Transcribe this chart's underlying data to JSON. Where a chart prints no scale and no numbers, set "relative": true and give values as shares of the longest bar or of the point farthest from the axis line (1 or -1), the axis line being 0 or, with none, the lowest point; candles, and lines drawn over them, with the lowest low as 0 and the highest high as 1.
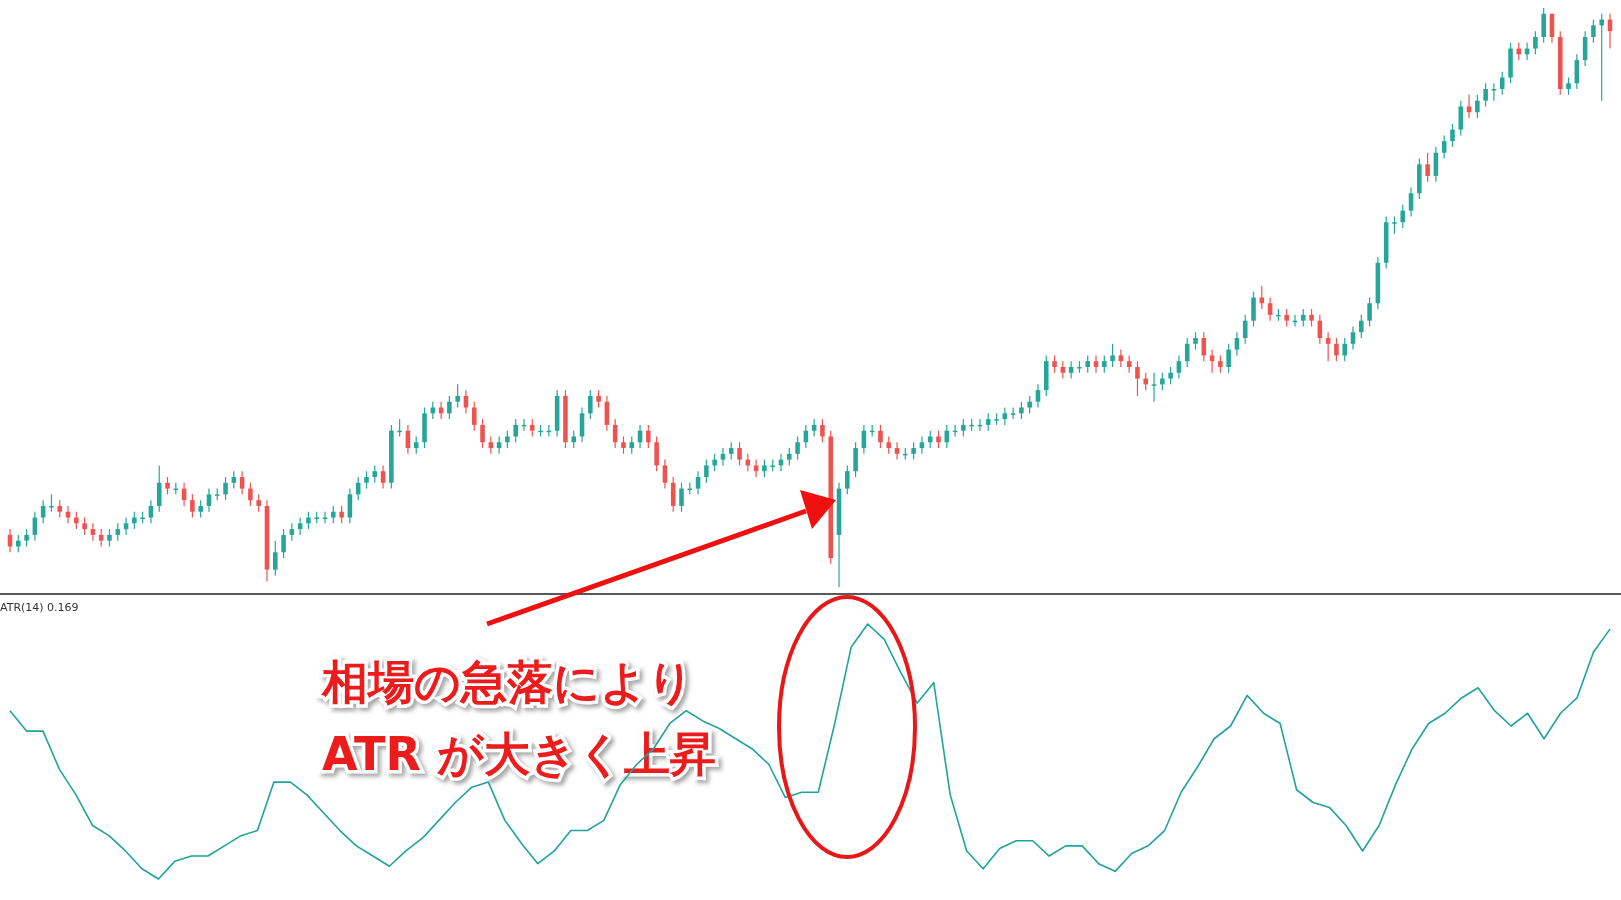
{
  "chart_data": [
    {
      "type": "candlestick",
      "relative": true,
      "colors": [
        "#ef5350",
        "#26a69a",
        "#26a69a",
        "#26a69a",
        "#26a69a",
        "#26a69a",
        "#ef5350",
        "#ef5350",
        "#ef5350",
        "#ef5350",
        "#ef5350",
        "#ef5350",
        "#26a69a",
        "#26a69a",
        "#26a69a",
        "#26a69a",
        "#26a69a",
        "#26a69a",
        "#26a69a",
        "#ef5350",
        "#26a69a",
        "#ef5350",
        "#ef5350",
        "#26a69a",
        "#26a69a",
        "#26a69a",
        "#26a69a",
        "#26a69a",
        "#ef5350",
        "#ef5350",
        "#ef5350",
        "#ef5350",
        "#26a69a",
        "#26a69a",
        "#26a69a",
        "#26a69a",
        "#26a69a",
        "#26a69a",
        "#26a69a",
        "#26a69a",
        "#ef5350",
        "#26a69a",
        "#26a69a",
        "#26a69a",
        "#26a69a",
        "#ef5350",
        "#26a69a",
        "#26a69a",
        "#ef5350",
        "#26a69a",
        "#26a69a",
        "#26a69a",
        "#ef5350",
        "#26a69a",
        "#26a69a",
        "#ef5350",
        "#ef5350",
        "#ef5350",
        "#ef5350",
        "#26a69a",
        "#26a69a",
        "#26a69a",
        "#26a69a",
        "#ef5350",
        "#26a69a",
        "#26a69a",
        "#26a69a",
        "#ef5350",
        "#26a69a",
        "#26a69a",
        "#26a69a",
        "#ef5350",
        "#ef5350",
        "#ef5350",
        "#ef5350",
        "#26a69a",
        "#26a69a",
        "#ef5350",
        "#ef5350",
        "#ef5350",
        "#ef5350",
        "#26a69a",
        "#26a69a",
        "#26a69a",
        "#26a69a",
        "#26a69a",
        "#26a69a",
        "#26a69a",
        "#ef5350",
        "#ef5350",
        "#ef5350",
        "#26a69a",
        "#26a69a",
        "#26a69a",
        "#26a69a",
        "#26a69a",
        "#26a69a",
        "#26a69a",
        "#ef5350",
        "#ef5350",
        "#26a69a",
        "#26a69a",
        "#26a69a",
        "#26a69a",
        "#26a69a",
        "#ef5350",
        "#ef5350",
        "#ef5350",
        "#26a69a",
        "#26a69a",
        "#26a69a",
        "#26a69a",
        "#ef5350",
        "#26a69a",
        "#26a69a",
        "#26a69a",
        "#26a69a",
        "#26a69a",
        "#26a69a",
        "#26a69a",
        "#26a69a",
        "#26a69a",
        "#26a69a",
        "#26a69a",
        "#26a69a",
        "#26a69a",
        "#ef5350",
        "#ef5350",
        "#26a69a",
        "#26a69a",
        "#26a69a",
        "#ef5350",
        "#26a69a",
        "#26a69a",
        "#ef5350",
        "#ef5350",
        "#ef5350",
        "#ef5350",
        "#26a69a",
        "#26a69a",
        "#26a69a",
        "#26a69a",
        "#26a69a",
        "#26a69a",
        "#ef5350",
        "#ef5350",
        "#ef5350",
        "#26a69a",
        "#26a69a",
        "#26a69a",
        "#26a69a",
        "#ef5350",
        "#ef5350",
        "#26a69a",
        "#ef5350",
        "#26a69a",
        "#26a69a",
        "#ef5350",
        "#ef5350",
        "#ef5350",
        "#ef5350",
        "#26a69a",
        "#26a69a",
        "#26a69a",
        "#26a69a",
        "#26a69a",
        "#26a69a",
        "#26a69a",
        "#26a69a",
        "#26a69a",
        "#26a69a",
        "#ef5350",
        "#26a69a",
        "#26a69a",
        "#26a69a",
        "#26a69a",
        "#ef5350",
        "#26a69a",
        "#26a69a",
        "#26a69a",
        "#26a69a",
        "#26a69a",
        "#ef5350",
        "#26a69a",
        "#26a69a",
        "#26a69a",
        "#ef5350",
        "#ef5350",
        "#26a69a",
        "#26a69a",
        "#26a69a",
        "#26a69a",
        "#26a69a",
        "#ef5350"
      ],
      "categories": [
        null,
        null,
        null,
        null,
        null,
        null,
        null,
        null,
        null,
        null,
        null,
        null,
        null,
        null,
        null,
        null,
        null,
        null,
        null,
        null,
        null,
        null,
        null,
        null,
        null,
        null,
        null,
        null,
        null,
        null,
        null,
        null,
        null,
        null,
        null,
        null,
        null,
        null,
        null,
        null,
        null,
        null,
        null,
        null,
        null,
        null,
        null,
        null,
        null,
        null,
        null,
        null,
        null,
        null,
        null,
        null,
        null,
        null,
        null,
        null,
        null,
        null,
        null,
        null,
        null,
        null,
        null,
        null,
        null,
        null,
        null,
        null,
        null,
        null,
        null,
        null,
        null,
        null,
        null,
        null,
        null,
        null,
        null,
        null,
        null,
        null,
        null,
        null,
        null,
        null,
        null,
        null,
        null,
        null,
        null,
        null,
        null,
        null,
        null,
        null,
        null,
        null,
        null,
        null,
        null,
        null,
        null,
        null,
        null,
        null,
        null,
        null,
        null,
        null,
        null,
        null,
        null,
        null,
        null,
        null,
        null,
        null,
        null,
        null,
        null,
        null,
        null,
        null,
        null,
        null,
        null,
        null,
        null,
        null,
        null,
        null,
        null,
        null,
        null,
        null,
        null,
        null,
        null,
        null,
        null,
        null,
        null,
        null,
        null,
        null,
        null,
        null,
        null,
        null,
        null,
        null,
        null,
        null,
        null,
        null,
        null,
        null,
        null,
        null,
        null,
        null,
        null,
        null,
        null,
        null,
        null,
        null,
        null,
        null,
        null,
        null,
        null,
        null,
        null,
        null,
        null,
        null,
        null,
        null,
        null,
        null,
        null,
        null,
        null,
        null,
        null,
        null,
        null,
        null
      ],
      "ohlc": [
        [
          0.09,
          0.1,
          0.06,
          0.07
        ],
        [
          0.07,
          0.09,
          0.06,
          0.08
        ],
        [
          0.08,
          0.1,
          0.07,
          0.09
        ],
        [
          0.09,
          0.13,
          0.08,
          0.12
        ],
        [
          0.12,
          0.15,
          0.11,
          0.14
        ],
        [
          0.14,
          0.16,
          0.13,
          0.14
        ],
        [
          0.14,
          0.15,
          0.12,
          0.13
        ],
        [
          0.13,
          0.14,
          0.11,
          0.12
        ],
        [
          0.12,
          0.13,
          0.1,
          0.11
        ],
        [
          0.11,
          0.12,
          0.09,
          0.1
        ],
        [
          0.1,
          0.11,
          0.08,
          0.09
        ],
        [
          0.09,
          0.1,
          0.07,
          0.08
        ],
        [
          0.08,
          0.1,
          0.07,
          0.09
        ],
        [
          0.09,
          0.11,
          0.08,
          0.1
        ],
        [
          0.1,
          0.12,
          0.09,
          0.11
        ],
        [
          0.11,
          0.13,
          0.1,
          0.12
        ],
        [
          0.12,
          0.13,
          0.11,
          0.12
        ],
        [
          0.12,
          0.15,
          0.11,
          0.14
        ],
        [
          0.14,
          0.21,
          0.13,
          0.18
        ],
        [
          0.18,
          0.19,
          0.16,
          0.17
        ],
        [
          0.17,
          0.18,
          0.16,
          0.17
        ],
        [
          0.17,
          0.18,
          0.14,
          0.15
        ],
        [
          0.15,
          0.16,
          0.12,
          0.13
        ],
        [
          0.13,
          0.15,
          0.12,
          0.14
        ],
        [
          0.14,
          0.17,
          0.13,
          0.16
        ],
        [
          0.16,
          0.17,
          0.15,
          0.16
        ],
        [
          0.16,
          0.19,
          0.15,
          0.18
        ],
        [
          0.18,
          0.2,
          0.17,
          0.19
        ],
        [
          0.19,
          0.2,
          0.16,
          0.17
        ],
        [
          0.17,
          0.18,
          0.14,
          0.15
        ],
        [
          0.15,
          0.16,
          0.13,
          0.14
        ],
        [
          0.14,
          0.15,
          0.01,
          0.03
        ],
        [
          0.03,
          0.08,
          0.02,
          0.06
        ],
        [
          0.06,
          0.1,
          0.05,
          0.09
        ],
        [
          0.09,
          0.11,
          0.08,
          0.1
        ],
        [
          0.1,
          0.12,
          0.09,
          0.11
        ],
        [
          0.11,
          0.13,
          0.1,
          0.12
        ],
        [
          0.12,
          0.13,
          0.11,
          0.12
        ],
        [
          0.12,
          0.13,
          0.11,
          0.12
        ],
        [
          0.12,
          0.14,
          0.11,
          0.13
        ],
        [
          0.13,
          0.14,
          0.11,
          0.12
        ],
        [
          0.12,
          0.17,
          0.11,
          0.16
        ],
        [
          0.16,
          0.19,
          0.15,
          0.18
        ],
        [
          0.18,
          0.2,
          0.17,
          0.19
        ],
        [
          0.19,
          0.21,
          0.18,
          0.2
        ],
        [
          0.2,
          0.21,
          0.17,
          0.18
        ],
        [
          0.18,
          0.28,
          0.17,
          0.27
        ],
        [
          0.27,
          0.29,
          0.26,
          0.27
        ],
        [
          0.27,
          0.28,
          0.23,
          0.24
        ],
        [
          0.24,
          0.26,
          0.23,
          0.25
        ],
        [
          0.25,
          0.31,
          0.24,
          0.3
        ],
        [
          0.3,
          0.32,
          0.29,
          0.31
        ],
        [
          0.31,
          0.32,
          0.29,
          0.3
        ],
        [
          0.3,
          0.33,
          0.29,
          0.32
        ],
        [
          0.32,
          0.35,
          0.31,
          0.33
        ],
        [
          0.33,
          0.34,
          0.3,
          0.31
        ],
        [
          0.31,
          0.32,
          0.27,
          0.28
        ],
        [
          0.28,
          0.29,
          0.24,
          0.25
        ],
        [
          0.25,
          0.26,
          0.23,
          0.24
        ],
        [
          0.24,
          0.26,
          0.23,
          0.25
        ],
        [
          0.25,
          0.27,
          0.24,
          0.26
        ],
        [
          0.26,
          0.29,
          0.25,
          0.28
        ],
        [
          0.28,
          0.29,
          0.27,
          0.28
        ],
        [
          0.28,
          0.29,
          0.26,
          0.27
        ],
        [
          0.27,
          0.28,
          0.26,
          0.27
        ],
        [
          0.27,
          0.28,
          0.26,
          0.27
        ],
        [
          0.27,
          0.34,
          0.26,
          0.33
        ],
        [
          0.33,
          0.34,
          0.24,
          0.25
        ],
        [
          0.25,
          0.27,
          0.24,
          0.26
        ],
        [
          0.26,
          0.31,
          0.25,
          0.3
        ],
        [
          0.3,
          0.34,
          0.29,
          0.33
        ],
        [
          0.33,
          0.34,
          0.31,
          0.32
        ],
        [
          0.32,
          0.33,
          0.27,
          0.28
        ],
        [
          0.28,
          0.29,
          0.24,
          0.25
        ],
        [
          0.25,
          0.26,
          0.23,
          0.24
        ],
        [
          0.24,
          0.26,
          0.23,
          0.25
        ],
        [
          0.25,
          0.28,
          0.24,
          0.27
        ],
        [
          0.27,
          0.28,
          0.24,
          0.25
        ],
        [
          0.25,
          0.26,
          0.2,
          0.21
        ],
        [
          0.21,
          0.22,
          0.17,
          0.18
        ],
        [
          0.18,
          0.19,
          0.13,
          0.14
        ],
        [
          0.14,
          0.18,
          0.13,
          0.17
        ],
        [
          0.17,
          0.18,
          0.16,
          0.17
        ],
        [
          0.17,
          0.2,
          0.16,
          0.19
        ],
        [
          0.19,
          0.22,
          0.18,
          0.21
        ],
        [
          0.21,
          0.23,
          0.2,
          0.22
        ],
        [
          0.22,
          0.24,
          0.21,
          0.23
        ],
        [
          0.23,
          0.25,
          0.22,
          0.24
        ],
        [
          0.24,
          0.25,
          0.21,
          0.22
        ],
        [
          0.22,
          0.23,
          0.2,
          0.21
        ],
        [
          0.21,
          0.22,
          0.19,
          0.2
        ],
        [
          0.2,
          0.22,
          0.19,
          0.21
        ],
        [
          0.21,
          0.22,
          0.2,
          0.21
        ],
        [
          0.21,
          0.23,
          0.2,
          0.22
        ],
        [
          0.22,
          0.24,
          0.21,
          0.23
        ],
        [
          0.23,
          0.26,
          0.22,
          0.25
        ],
        [
          0.25,
          0.28,
          0.24,
          0.27
        ],
        [
          0.27,
          0.29,
          0.26,
          0.28
        ],
        [
          0.28,
          0.29,
          0.25,
          0.26
        ],
        [
          0.26,
          0.27,
          0.04,
          0.05
        ],
        [
          0.09,
          0.18,
          0.0,
          0.17
        ],
        [
          0.17,
          0.21,
          0.16,
          0.2
        ],
        [
          0.2,
          0.25,
          0.19,
          0.24
        ],
        [
          0.24,
          0.28,
          0.23,
          0.27
        ],
        [
          0.27,
          0.28,
          0.26,
          0.27
        ],
        [
          0.27,
          0.28,
          0.24,
          0.25
        ],
        [
          0.25,
          0.26,
          0.23,
          0.24
        ],
        [
          0.24,
          0.25,
          0.22,
          0.23
        ],
        [
          0.23,
          0.24,
          0.22,
          0.23
        ],
        [
          0.23,
          0.25,
          0.22,
          0.24
        ],
        [
          0.24,
          0.26,
          0.23,
          0.25
        ],
        [
          0.25,
          0.27,
          0.24,
          0.26
        ],
        [
          0.26,
          0.27,
          0.24,
          0.25
        ],
        [
          0.25,
          0.28,
          0.24,
          0.27
        ],
        [
          0.27,
          0.28,
          0.26,
          0.27
        ],
        [
          0.27,
          0.29,
          0.26,
          0.28
        ],
        [
          0.28,
          0.29,
          0.27,
          0.28
        ],
        [
          0.28,
          0.29,
          0.27,
          0.28
        ],
        [
          0.28,
          0.3,
          0.27,
          0.29
        ],
        [
          0.29,
          0.3,
          0.28,
          0.29
        ],
        [
          0.29,
          0.31,
          0.28,
          0.3
        ],
        [
          0.3,
          0.31,
          0.29,
          0.3
        ],
        [
          0.3,
          0.32,
          0.29,
          0.31
        ],
        [
          0.31,
          0.33,
          0.3,
          0.32
        ],
        [
          0.32,
          0.35,
          0.31,
          0.34
        ],
        [
          0.34,
          0.4,
          0.33,
          0.39
        ],
        [
          0.39,
          0.4,
          0.37,
          0.38
        ],
        [
          0.38,
          0.39,
          0.36,
          0.37
        ],
        [
          0.37,
          0.39,
          0.36,
          0.38
        ],
        [
          0.38,
          0.39,
          0.37,
          0.38
        ],
        [
          0.38,
          0.4,
          0.37,
          0.39
        ],
        [
          0.39,
          0.4,
          0.37,
          0.38
        ],
        [
          0.38,
          0.4,
          0.37,
          0.39
        ],
        [
          0.39,
          0.42,
          0.38,
          0.4
        ],
        [
          0.4,
          0.41,
          0.38,
          0.39
        ],
        [
          0.39,
          0.4,
          0.37,
          0.38
        ],
        [
          0.38,
          0.39,
          0.33,
          0.36
        ],
        [
          0.36,
          0.37,
          0.34,
          0.35
        ],
        [
          0.35,
          0.37,
          0.32,
          0.35
        ],
        [
          0.35,
          0.37,
          0.34,
          0.36
        ],
        [
          0.36,
          0.38,
          0.35,
          0.37
        ],
        [
          0.37,
          0.4,
          0.36,
          0.39
        ],
        [
          0.39,
          0.43,
          0.38,
          0.42
        ],
        [
          0.42,
          0.44,
          0.41,
          0.43
        ],
        [
          0.43,
          0.44,
          0.39,
          0.4
        ],
        [
          0.4,
          0.41,
          0.37,
          0.39
        ],
        [
          0.39,
          0.4,
          0.37,
          0.38
        ],
        [
          0.38,
          0.42,
          0.37,
          0.41
        ],
        [
          0.41,
          0.44,
          0.4,
          0.43
        ],
        [
          0.43,
          0.47,
          0.42,
          0.46
        ],
        [
          0.46,
          0.51,
          0.45,
          0.5
        ],
        [
          0.5,
          0.52,
          0.48,
          0.49
        ],
        [
          0.49,
          0.5,
          0.46,
          0.47
        ],
        [
          0.47,
          0.48,
          0.46,
          0.47
        ],
        [
          0.47,
          0.48,
          0.45,
          0.46
        ],
        [
          0.46,
          0.47,
          0.45,
          0.46
        ],
        [
          0.46,
          0.48,
          0.45,
          0.47
        ],
        [
          0.47,
          0.48,
          0.45,
          0.46
        ],
        [
          0.46,
          0.47,
          0.42,
          0.43
        ],
        [
          0.43,
          0.44,
          0.39,
          0.42
        ],
        [
          0.42,
          0.43,
          0.39,
          0.4
        ],
        [
          0.4,
          0.43,
          0.39,
          0.42
        ],
        [
          0.42,
          0.45,
          0.41,
          0.44
        ],
        [
          0.44,
          0.47,
          0.43,
          0.46
        ],
        [
          0.46,
          0.5,
          0.45,
          0.49
        ],
        [
          0.49,
          0.57,
          0.48,
          0.56
        ],
        [
          0.56,
          0.64,
          0.55,
          0.63
        ],
        [
          0.63,
          0.64,
          0.61,
          0.63
        ],
        [
          0.63,
          0.66,
          0.62,
          0.65
        ],
        [
          0.65,
          0.69,
          0.64,
          0.68
        ],
        [
          0.68,
          0.74,
          0.67,
          0.73
        ],
        [
          0.73,
          0.75,
          0.7,
          0.71
        ],
        [
          0.71,
          0.76,
          0.7,
          0.75
        ],
        [
          0.75,
          0.78,
          0.74,
          0.77
        ],
        [
          0.77,
          0.8,
          0.76,
          0.79
        ],
        [
          0.79,
          0.84,
          0.78,
          0.83
        ],
        [
          0.83,
          0.85,
          0.81,
          0.82
        ],
        [
          0.82,
          0.85,
          0.81,
          0.84
        ],
        [
          0.84,
          0.87,
          0.83,
          0.86
        ],
        [
          0.86,
          0.87,
          0.84,
          0.86
        ],
        [
          0.86,
          0.89,
          0.85,
          0.88
        ],
        [
          0.88,
          0.94,
          0.87,
          0.93
        ],
        [
          0.93,
          0.94,
          0.91,
          0.92
        ],
        [
          0.92,
          0.94,
          0.91,
          0.93
        ],
        [
          0.93,
          0.96,
          0.92,
          0.95
        ],
        [
          0.95,
          1.0,
          0.94,
          0.99
        ],
        [
          0.99,
          0.99,
          0.94,
          0.95
        ],
        [
          0.95,
          0.96,
          0.85,
          0.86
        ],
        [
          0.86,
          0.88,
          0.85,
          0.87
        ],
        [
          0.87,
          0.92,
          0.86,
          0.91
        ],
        [
          0.91,
          0.96,
          0.9,
          0.95
        ],
        [
          0.95,
          0.98,
          0.94,
          0.97
        ],
        [
          0.97,
          0.99,
          0.84,
          0.98
        ],
        [
          0.98,
          0.99,
          0.93,
          0.96
        ]
      ]
    },
    {
      "type": "line",
      "relative": true,
      "title": "ATR(14) 0.169",
      "annotations": [
        "相場の急落により\nATR が大きく上昇"
      ],
      "categories": [
        null,
        null,
        null,
        null,
        null,
        null,
        null,
        null,
        null,
        null,
        null,
        null,
        null,
        null,
        null,
        null,
        null,
        null,
        null,
        null,
        null,
        null,
        null,
        null,
        null,
        null,
        null,
        null,
        null,
        null,
        null,
        null,
        null,
        null,
        null,
        null,
        null,
        null,
        null,
        null,
        null,
        null,
        null,
        null,
        null,
        null,
        null,
        null,
        null,
        null,
        null,
        null,
        null,
        null,
        null,
        null,
        null,
        null,
        null,
        null,
        null,
        null,
        null,
        null,
        null,
        null,
        null,
        null,
        null,
        null,
        null,
        null,
        null,
        null,
        null,
        null,
        null,
        null,
        null,
        null,
        null,
        null,
        null,
        null,
        null,
        null,
        null,
        null,
        null,
        null,
        null,
        null,
        null,
        null,
        null,
        null,
        null,
        null
      ],
      "series": [
        {
          "color": "#20a39e",
          "values": [
            0.66,
            0.58,
            0.58,
            0.43,
            0.33,
            0.21,
            0.17,
            0.11,
            0.04,
            0.0,
            0.07,
            0.09,
            0.09,
            0.13,
            0.17,
            0.19,
            0.38,
            0.38,
            0.33,
            0.26,
            0.19,
            0.13,
            0.09,
            0.05,
            0.11,
            0.16,
            0.23,
            0.3,
            0.36,
            0.38,
            0.23,
            0.14,
            0.06,
            0.11,
            0.19,
            0.19,
            0.23,
            0.37,
            0.45,
            0.51,
            0.61,
            0.66,
            0.62,
            0.59,
            0.55,
            0.51,
            0.45,
            0.32,
            0.34,
            0.34,
            0.61,
            0.91,
            1.0,
            0.94,
            0.81,
            0.69,
            0.77,
            0.33,
            0.11,
            0.04,
            0.12,
            0.15,
            0.15,
            0.09,
            0.13,
            0.13,
            0.06,
            0.03,
            0.1,
            0.13,
            0.19,
            0.34,
            0.44,
            0.55,
            0.6,
            0.72,
            0.65,
            0.61,
            0.35,
            0.3,
            0.28,
            0.21,
            0.11,
            0.21,
            0.37,
            0.51,
            0.61,
            0.65,
            0.71,
            0.75,
            0.66,
            0.6,
            0.65,
            0.55,
            0.65,
            0.71,
            0.89,
            0.98
          ]
        }
      ]
    }
  ]
}
